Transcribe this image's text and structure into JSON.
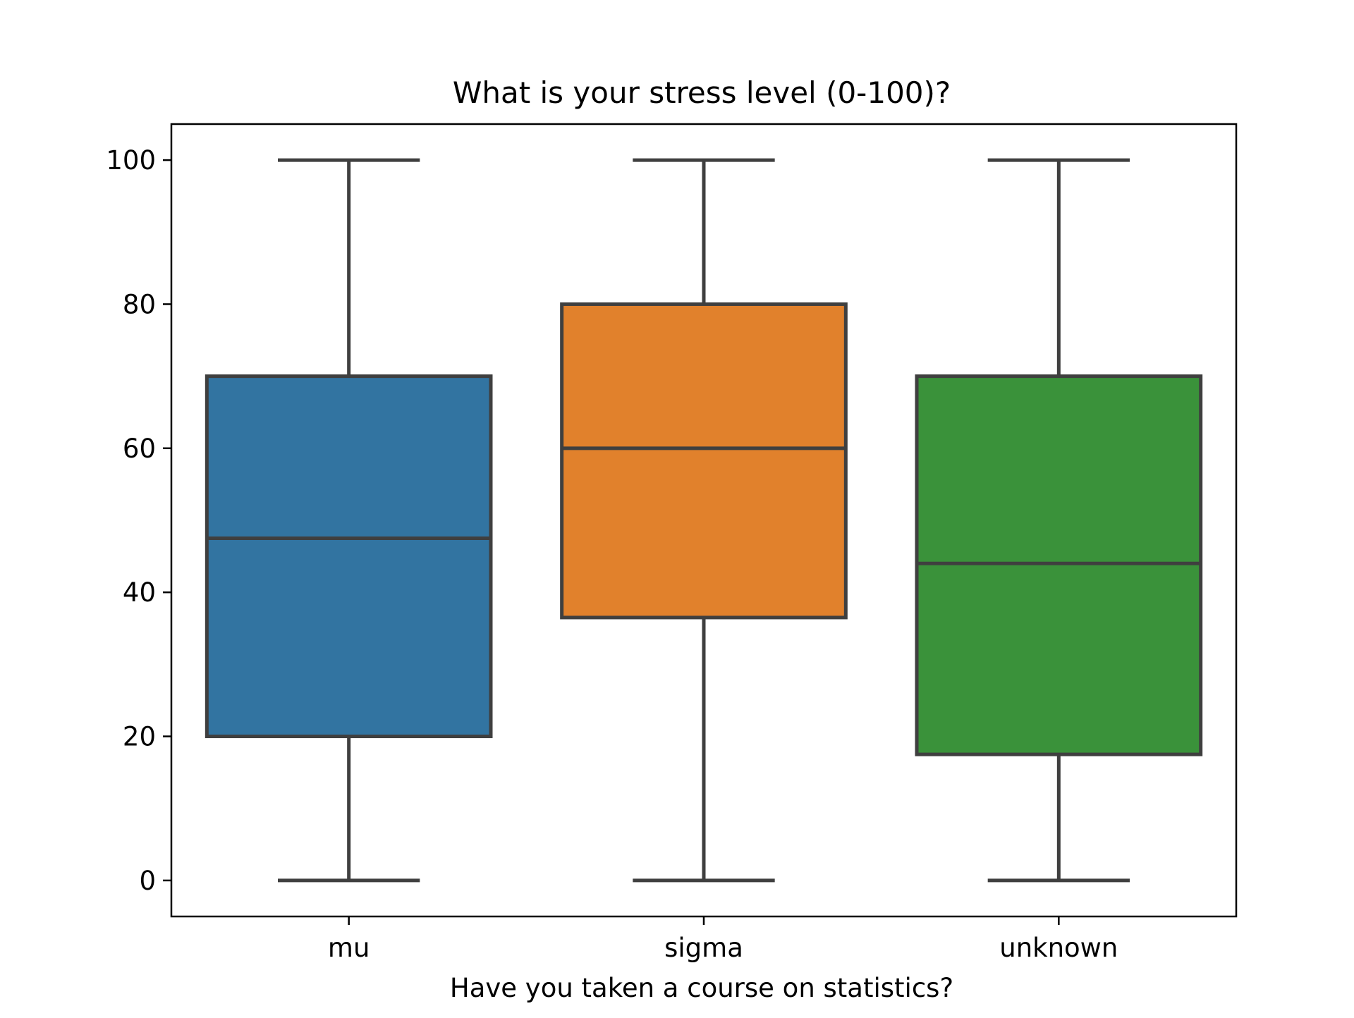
{
  "chart_data": {
    "type": "box",
    "title": "What is your stress level (0-100)?",
    "xlabel": "Have you taken a course on statistics?",
    "ylabel": "",
    "ylim": [
      -5,
      105
    ],
    "yticks": [
      0,
      20,
      40,
      60,
      80,
      100
    ],
    "categories": [
      "mu",
      "sigma",
      "unknown"
    ],
    "boxes": [
      {
        "category": "mu",
        "whisker_low": 0,
        "q1": 20.0,
        "median": 47.5,
        "q3": 70.0,
        "whisker_high": 100,
        "color": "#3274a1"
      },
      {
        "category": "sigma",
        "whisker_low": 0,
        "q1": 36.5,
        "median": 60.0,
        "q3": 80.0,
        "whisker_high": 100,
        "color": "#e1812c"
      },
      {
        "category": "unknown",
        "whisker_low": 0,
        "q1": 17.5,
        "median": 44.0,
        "q3": 70.0,
        "whisker_high": 100,
        "color": "#3a923a"
      }
    ],
    "line_color": "#3f3f3f",
    "grid": false,
    "legend": "none"
  }
}
